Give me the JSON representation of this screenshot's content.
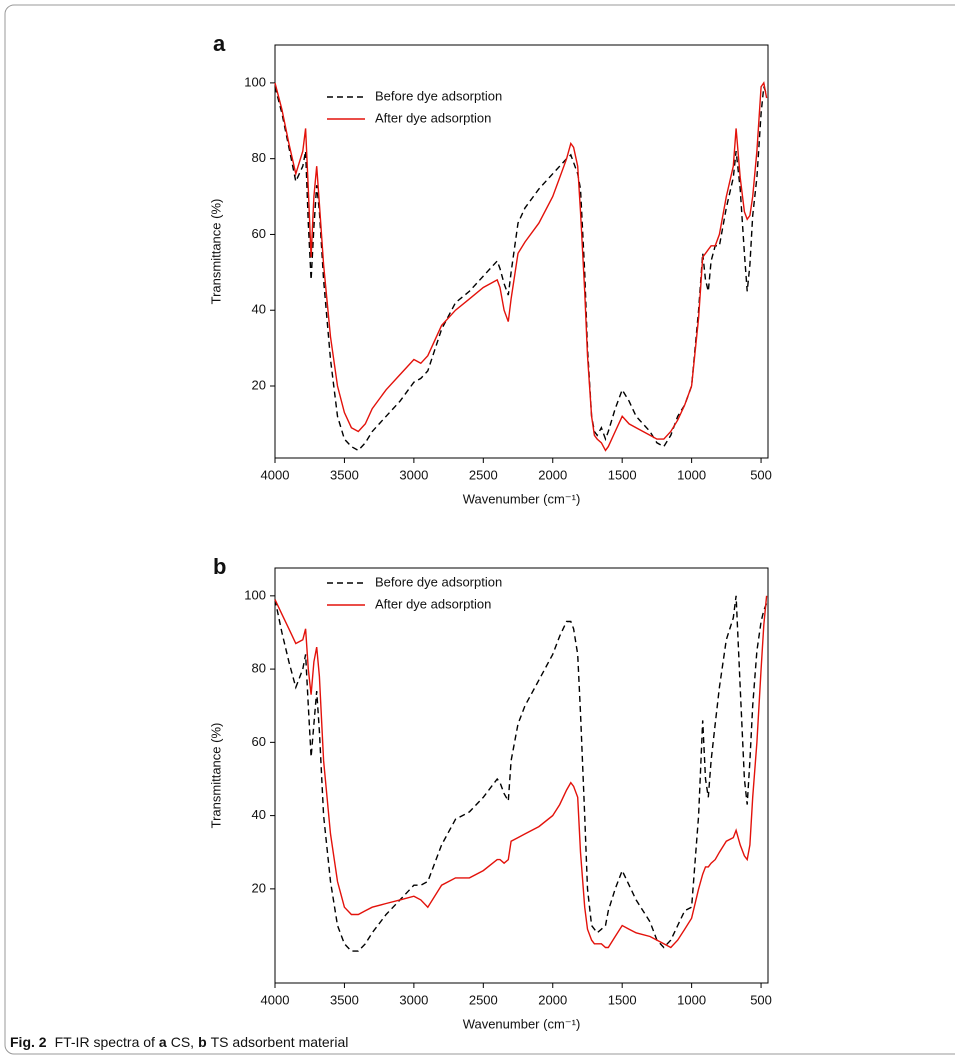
{
  "chart_data": [
    {
      "type": "line",
      "title": "a",
      "xlabel": "Wavenumber (cm⁻¹)",
      "ylabel": "Transmittance (%)",
      "x": [
        4000,
        3950,
        3900,
        3850,
        3800,
        3780,
        3760,
        3740,
        3720,
        3700,
        3680,
        3650,
        3600,
        3550,
        3500,
        3450,
        3400,
        3350,
        3300,
        3200,
        3100,
        3000,
        2950,
        2900,
        2800,
        2700,
        2600,
        2500,
        2400,
        2380,
        2350,
        2320,
        2300,
        2250,
        2200,
        2100,
        2000,
        1950,
        1900,
        1870,
        1850,
        1820,
        1800,
        1770,
        1750,
        1720,
        1700,
        1680,
        1650,
        1620,
        1600,
        1550,
        1500,
        1450,
        1400,
        1300,
        1250,
        1200,
        1150,
        1100,
        1050,
        1000,
        950,
        920,
        900,
        880,
        860,
        830,
        800,
        750,
        700,
        680,
        650,
        620,
        600,
        580,
        560,
        530,
        500,
        480,
        460
      ],
      "series": [
        {
          "name": "Before dye adsorption",
          "color": "#000000",
          "style": "dashed",
          "values": [
            99,
            92,
            83,
            74,
            78,
            82,
            63,
            48,
            62,
            73,
            66,
            48,
            27,
            12,
            6,
            4,
            3,
            5,
            8,
            12,
            16,
            21,
            22,
            24,
            35,
            42,
            45,
            49,
            53,
            51,
            47,
            44,
            50,
            63,
            67,
            72,
            76,
            78,
            80,
            81,
            79,
            76,
            72,
            50,
            30,
            12,
            8,
            7,
            9,
            6,
            8,
            14,
            19,
            16,
            12,
            8,
            5,
            4,
            7,
            12,
            15,
            20,
            40,
            55,
            48,
            45,
            53,
            57,
            57,
            67,
            75,
            82,
            72,
            55,
            45,
            52,
            65,
            75,
            92,
            99,
            97
          ]
        },
        {
          "name": "After dye adsorption",
          "color": "#e3120b",
          "style": "solid",
          "values": [
            100,
            93,
            84,
            76,
            82,
            88,
            72,
            54,
            70,
            78,
            68,
            52,
            33,
            20,
            13,
            9,
            8,
            10,
            14,
            19,
            23,
            27,
            26,
            28,
            36,
            40,
            43,
            46,
            48,
            46,
            40,
            37,
            43,
            55,
            58,
            63,
            70,
            75,
            80,
            84,
            83,
            78,
            66,
            45,
            28,
            12,
            7,
            6,
            5,
            3,
            4,
            8,
            12,
            10,
            9,
            7,
            6,
            6,
            8,
            11,
            15,
            20,
            38,
            54,
            55,
            56,
            57,
            57,
            60,
            70,
            78,
            88,
            75,
            66,
            64,
            65,
            70,
            82,
            99,
            100,
            96
          ]
        }
      ],
      "xlim": [
        4000,
        450
      ],
      "ylim": [
        1,
        110
      ],
      "xticks": [
        4000,
        3500,
        3000,
        2500,
        2000,
        1500,
        1000,
        500
      ],
      "yticks": [
        20,
        40,
        60,
        80,
        100
      ],
      "legend": "upper left"
    },
    {
      "type": "line",
      "title": "b",
      "xlabel": "Wavenumber (cm⁻¹)",
      "ylabel": "Transmittance (%)",
      "x": [
        4000,
        3950,
        3900,
        3850,
        3800,
        3780,
        3760,
        3740,
        3720,
        3700,
        3680,
        3650,
        3600,
        3550,
        3500,
        3450,
        3400,
        3350,
        3300,
        3200,
        3100,
        3000,
        2950,
        2900,
        2800,
        2700,
        2600,
        2500,
        2400,
        2380,
        2350,
        2320,
        2300,
        2250,
        2200,
        2100,
        2000,
        1950,
        1900,
        1870,
        1850,
        1820,
        1800,
        1770,
        1750,
        1720,
        1700,
        1680,
        1650,
        1620,
        1600,
        1550,
        1500,
        1450,
        1400,
        1300,
        1250,
        1200,
        1150,
        1100,
        1050,
        1000,
        950,
        920,
        900,
        880,
        860,
        830,
        800,
        750,
        700,
        680,
        650,
        620,
        600,
        580,
        560,
        530,
        500,
        480,
        460
      ],
      "series": [
        {
          "name": "Before dye adsorption",
          "color": "#000000",
          "style": "dashed",
          "values": [
            99,
            90,
            82,
            75,
            80,
            84,
            70,
            56,
            65,
            74,
            63,
            40,
            22,
            10,
            5,
            3,
            3,
            5,
            8,
            13,
            17,
            21,
            21,
            22,
            32,
            39,
            41,
            45,
            50,
            49,
            46,
            44,
            55,
            65,
            70,
            77,
            84,
            89,
            93,
            93,
            91,
            84,
            68,
            40,
            20,
            10,
            9,
            8,
            9,
            10,
            14,
            20,
            25,
            21,
            17,
            11,
            6,
            4,
            6,
            10,
            14,
            15,
            40,
            66,
            50,
            45,
            55,
            65,
            75,
            88,
            94,
            100,
            75,
            50,
            43,
            55,
            70,
            85,
            93,
            96,
            98
          ]
        },
        {
          "name": "After dye adsorption",
          "color": "#e3120b",
          "style": "solid",
          "values": [
            99,
            95,
            91,
            87,
            88,
            91,
            80,
            73,
            82,
            86,
            78,
            55,
            35,
            22,
            15,
            13,
            13,
            14,
            15,
            16,
            17,
            18,
            17,
            15,
            21,
            23,
            23,
            25,
            28,
            28,
            27,
            28,
            33,
            34,
            35,
            37,
            40,
            43,
            47,
            49,
            48,
            45,
            30,
            15,
            9,
            6,
            5,
            5,
            5,
            4,
            4,
            7,
            10,
            9,
            8,
            7,
            6,
            5,
            4,
            6,
            9,
            12,
            20,
            24,
            26,
            26,
            27,
            28,
            30,
            33,
            34,
            36,
            32,
            29,
            28,
            32,
            45,
            60,
            80,
            92,
            100
          ]
        }
      ],
      "xlim": [
        4000,
        450
      ],
      "ylim": [
        -5.7,
        107.6
      ],
      "xticks": [
        4000,
        3500,
        3000,
        2500,
        2000,
        1500,
        1000,
        500
      ],
      "yticks": [
        20,
        40,
        60,
        80,
        100
      ],
      "legend": "upper left"
    }
  ],
  "caption": {
    "label": "Fig. 2",
    "parts": [
      "FT-IR spectra of",
      "a",
      "CS,",
      "b",
      "TS adsorbent material"
    ]
  }
}
